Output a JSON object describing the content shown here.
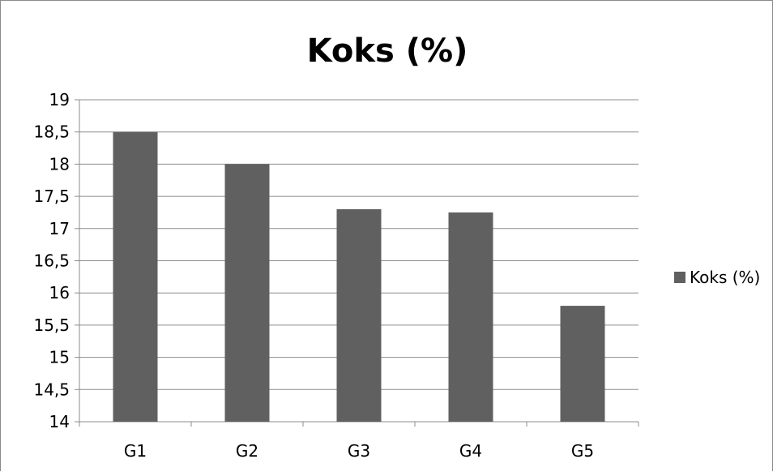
{
  "chart_data": {
    "type": "bar",
    "title": "Koks (%)",
    "categories": [
      "G1",
      "G2",
      "G3",
      "G4",
      "G5"
    ],
    "series": [
      {
        "name": "Koks (%)",
        "values": [
          18.5,
          18.0,
          17.3,
          17.25,
          15.8
        ]
      }
    ],
    "ylim": [
      14,
      19
    ],
    "yticks": [
      "14",
      "14,5",
      "15",
      "15,5",
      "16",
      "16,5",
      "17",
      "17,5",
      "18",
      "18,5",
      "19"
    ],
    "grid": true,
    "legend_position": "right",
    "bar_color": "#606060",
    "grid_color": "#8c8c8c"
  }
}
